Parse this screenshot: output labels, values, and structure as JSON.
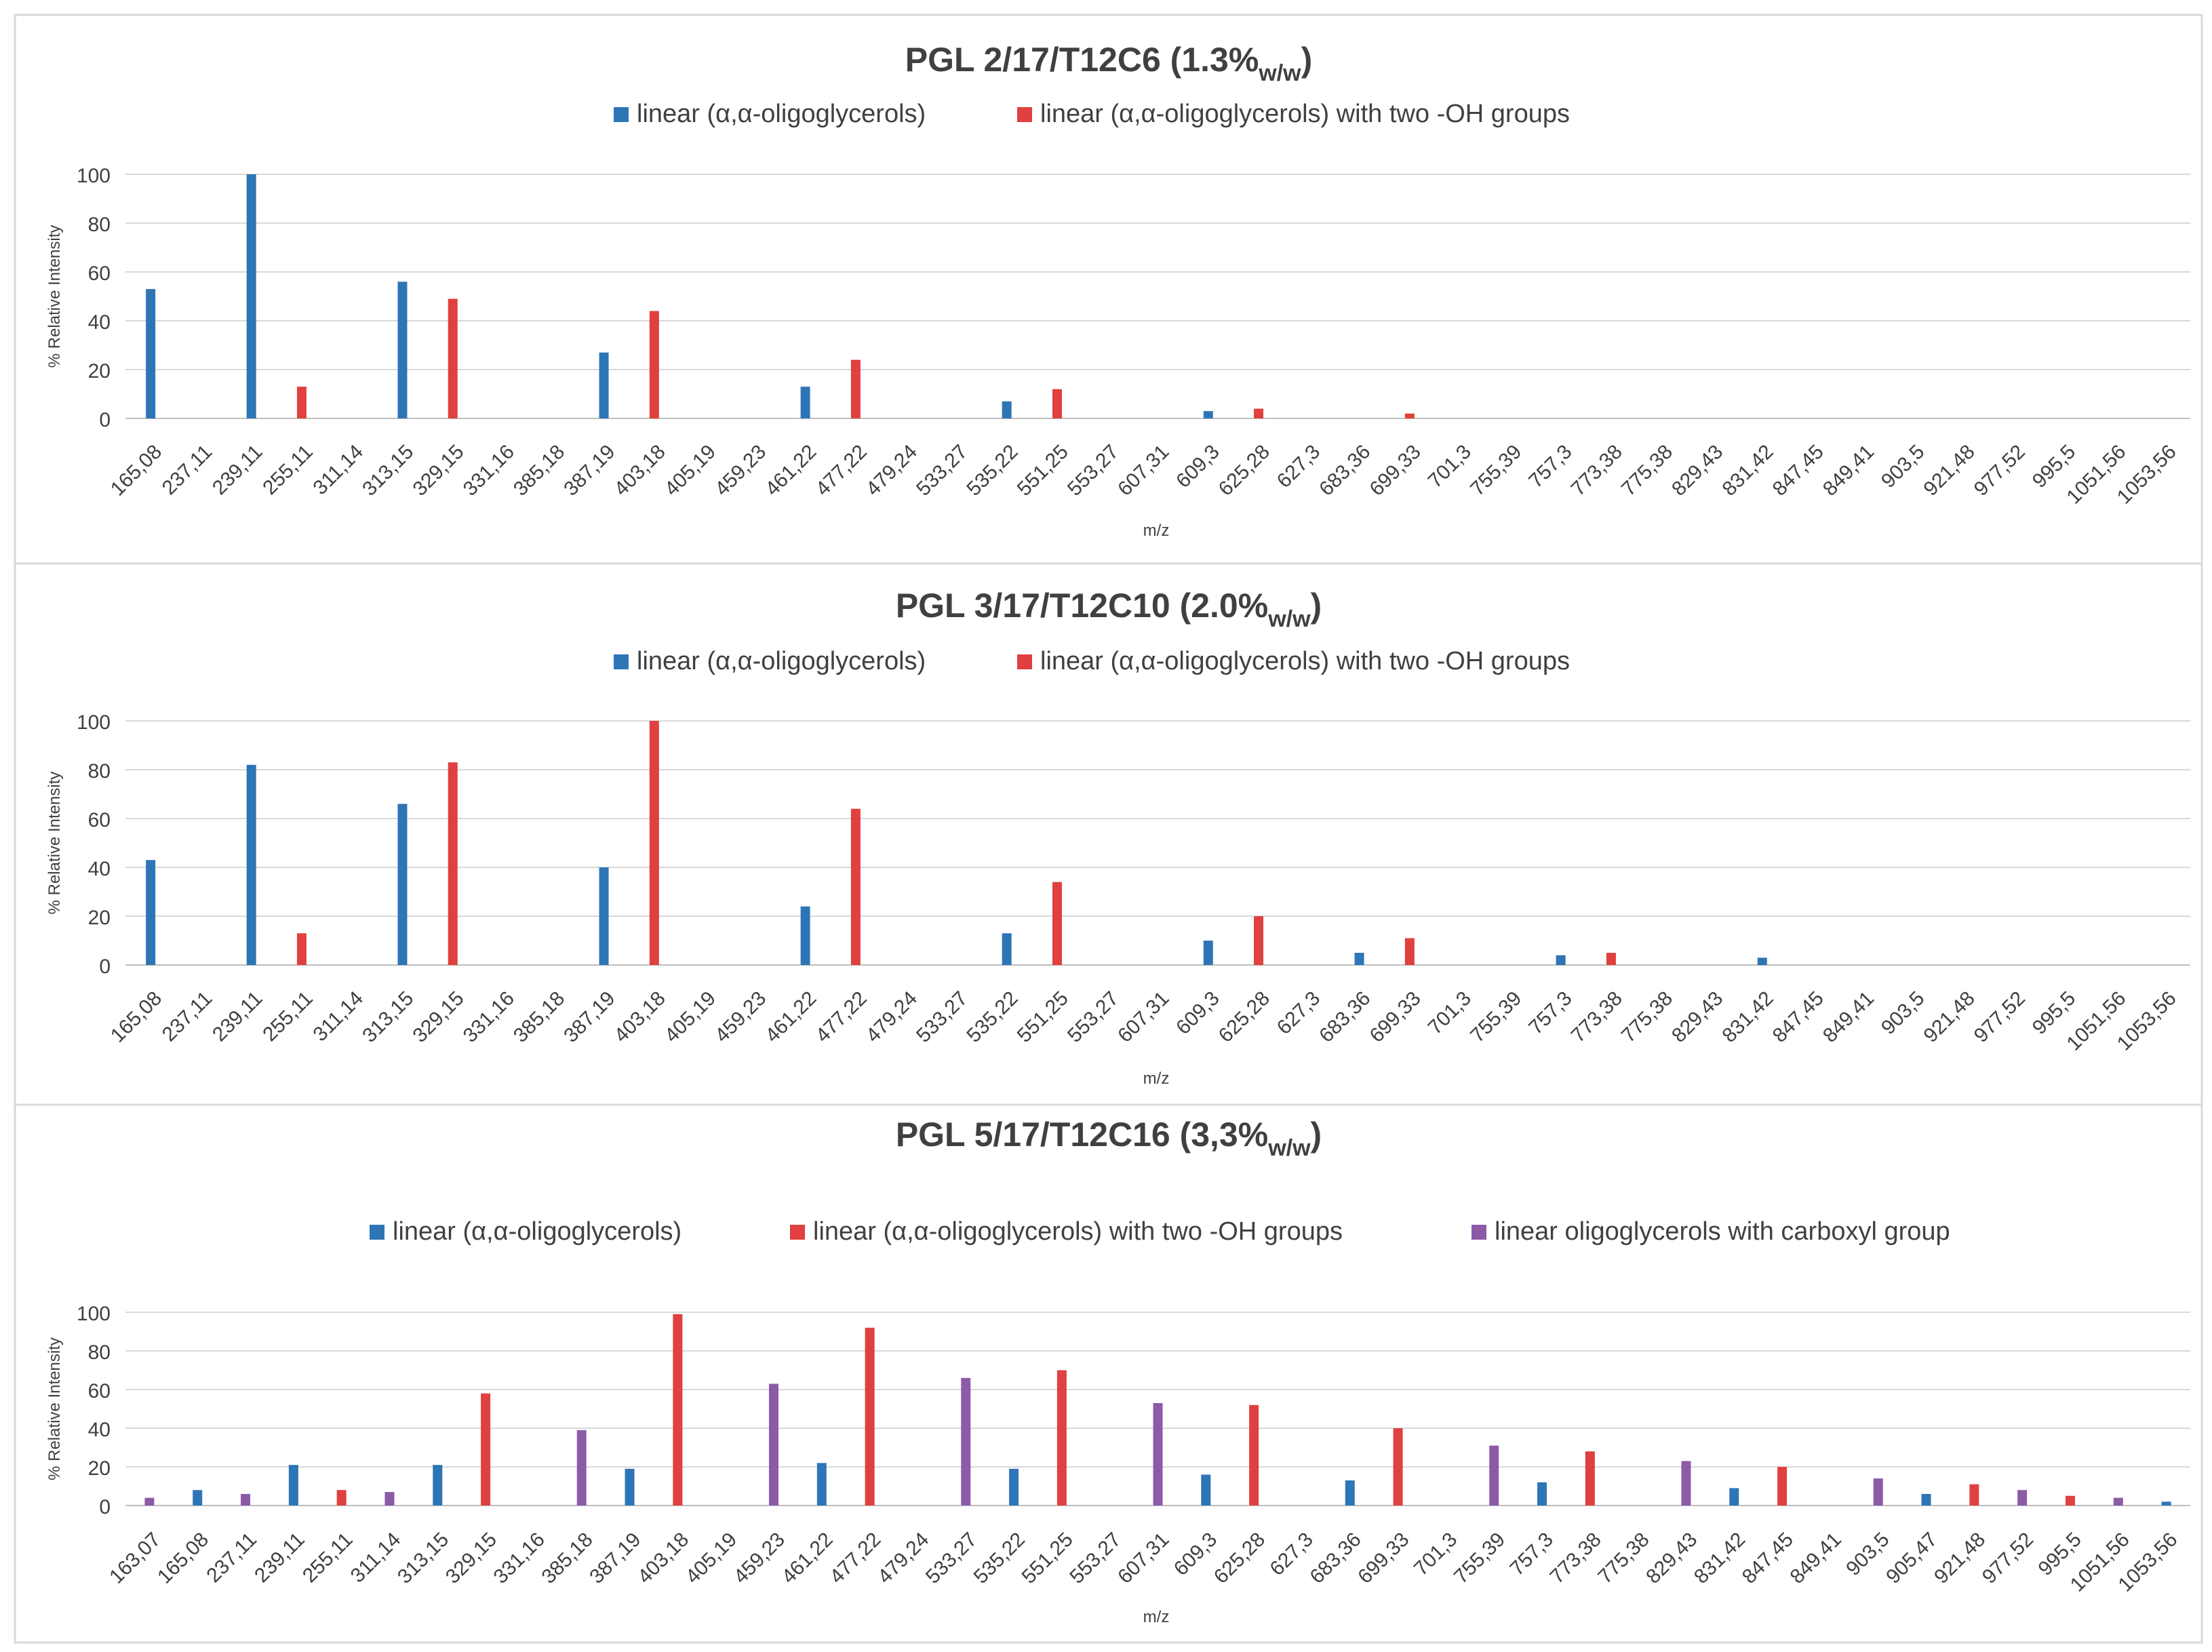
{
  "colors": {
    "linear": "#2E75B6",
    "linear_two_oh": "#E0403F",
    "carboxyl": "#8B5BA8",
    "grid": "#D9D9D9",
    "axis_text": "#404040",
    "title": "#404040"
  },
  "chart_data": [
    {
      "type": "bar",
      "title": "PGL 2/17/T12C6 (1.3%",
      "title_sub": "w/w",
      "title_end": ")",
      "xlabel": "m/z",
      "ylabel": "% Relative Intensity",
      "ylim": [
        0,
        100
      ],
      "yticks": [
        "0",
        "20",
        "40",
        "60",
        "80",
        "100"
      ],
      "legend_position": "top-center",
      "categories": [
        "165,08",
        "237,11",
        "239,11",
        "255,11",
        "311,14",
        "313,15",
        "329,15",
        "331,16",
        "385,18",
        "387,19",
        "403,18",
        "405,19",
        "459,23",
        "461,22",
        "477,22",
        "479,24",
        "533,27",
        "535,22",
        "551,25",
        "553,27",
        "607,31",
        "609,3",
        "625,28",
        "627,3",
        "683,36",
        "699,33",
        "701,3",
        "755,39",
        "757,3",
        "773,38",
        "775,38",
        "829,43",
        "831,42",
        "847,45",
        "849,41",
        "903,5",
        "921,48",
        "977,52",
        "995,5",
        "1051,56",
        "1053,56"
      ],
      "series": [
        {
          "name": "linear (α,α-oligoglycerols)",
          "color_key": "linear",
          "points": [
            {
              "category": "165,08",
              "value": 53
            },
            {
              "category": "239,11",
              "value": 100
            },
            {
              "category": "313,15",
              "value": 56
            },
            {
              "category": "387,19",
              "value": 27
            },
            {
              "category": "461,22",
              "value": 13
            },
            {
              "category": "535,22",
              "value": 7
            },
            {
              "category": "609,3",
              "value": 3
            }
          ]
        },
        {
          "name": "linear (α,α-oligoglycerols) with two -OH groups",
          "color_key": "linear_two_oh",
          "points": [
            {
              "category": "255,11",
              "value": 13
            },
            {
              "category": "329,15",
              "value": 49
            },
            {
              "category": "403,18",
              "value": 44
            },
            {
              "category": "477,22",
              "value": 24
            },
            {
              "category": "551,25",
              "value": 12
            },
            {
              "category": "625,28",
              "value": 4
            },
            {
              "category": "699,33",
              "value": 2
            }
          ]
        }
      ]
    },
    {
      "type": "bar",
      "title": "PGL 3/17/T12C10 (2.0%",
      "title_sub": "w/w",
      "title_end": ")",
      "xlabel": "m/z",
      "ylabel": "% Relative Intensity",
      "ylim": [
        0,
        100
      ],
      "yticks": [
        "0",
        "20",
        "40",
        "60",
        "80",
        "100"
      ],
      "legend_position": "top-center",
      "categories": [
        "165,08",
        "237,11",
        "239,11",
        "255,11",
        "311,14",
        "313,15",
        "329,15",
        "331,16",
        "385,18",
        "387,19",
        "403,18",
        "405,19",
        "459,23",
        "461,22",
        "477,22",
        "479,24",
        "533,27",
        "535,22",
        "551,25",
        "553,27",
        "607,31",
        "609,3",
        "625,28",
        "627,3",
        "683,36",
        "699,33",
        "701,3",
        "755,39",
        "757,3",
        "773,38",
        "775,38",
        "829,43",
        "831,42",
        "847,45",
        "849,41",
        "903,5",
        "921,48",
        "977,52",
        "995,5",
        "1051,56",
        "1053,56"
      ],
      "series": [
        {
          "name": "linear (α,α-oligoglycerols)",
          "color_key": "linear",
          "points": [
            {
              "category": "165,08",
              "value": 43
            },
            {
              "category": "239,11",
              "value": 82
            },
            {
              "category": "313,15",
              "value": 66
            },
            {
              "category": "387,19",
              "value": 40
            },
            {
              "category": "461,22",
              "value": 24
            },
            {
              "category": "535,22",
              "value": 13
            },
            {
              "category": "609,3",
              "value": 10
            },
            {
              "category": "683,36",
              "value": 5
            },
            {
              "category": "757,3",
              "value": 4
            },
            {
              "category": "831,42",
              "value": 3
            }
          ]
        },
        {
          "name": "linear (α,α-oligoglycerols) with two -OH groups",
          "color_key": "linear_two_oh",
          "points": [
            {
              "category": "255,11",
              "value": 13
            },
            {
              "category": "329,15",
              "value": 83
            },
            {
              "category": "403,18",
              "value": 100
            },
            {
              "category": "477,22",
              "value": 64
            },
            {
              "category": "551,25",
              "value": 34
            },
            {
              "category": "625,28",
              "value": 20
            },
            {
              "category": "699,33",
              "value": 11
            },
            {
              "category": "773,38",
              "value": 5
            }
          ]
        }
      ]
    },
    {
      "type": "bar",
      "title": "PGL 5/17/T12C16 (3,3%",
      "title_sub": "w/w",
      "title_end": ")",
      "xlabel": "m/z",
      "ylabel": "% Relative Intensity",
      "ylim": [
        0,
        100
      ],
      "yticks": [
        "0",
        "20",
        "40",
        "60",
        "80",
        "100"
      ],
      "legend_position": "top-center",
      "categories": [
        "163,07",
        "165,08",
        "237,11",
        "239,11",
        "255,11",
        "311,14",
        "313,15",
        "329,15",
        "331,16",
        "385,18",
        "387,19",
        "403,18",
        "405,19",
        "459,23",
        "461,22",
        "477,22",
        "479,24",
        "533,27",
        "535,22",
        "551,25",
        "553,27",
        "607,31",
        "609,3",
        "625,28",
        "627,3",
        "683,36",
        "699,33",
        "701,3",
        "755,39",
        "757,3",
        "773,38",
        "775,38",
        "829,43",
        "831,42",
        "847,45",
        "849,41",
        "903,5",
        "905,47",
        "921,48",
        "977,52",
        "995,5",
        "1051,56",
        "1053,56"
      ],
      "series": [
        {
          "name": "linear (α,α-oligoglycerols)",
          "color_key": "linear",
          "points": [
            {
              "category": "165,08",
              "value": 8
            },
            {
              "category": "239,11",
              "value": 21
            },
            {
              "category": "313,15",
              "value": 21
            },
            {
              "category": "387,19",
              "value": 19
            },
            {
              "category": "461,22",
              "value": 22
            },
            {
              "category": "535,22",
              "value": 19
            },
            {
              "category": "609,3",
              "value": 16
            },
            {
              "category": "683,36",
              "value": 13
            },
            {
              "category": "757,3",
              "value": 12
            },
            {
              "category": "831,42",
              "value": 9
            },
            {
              "category": "905,47",
              "value": 6
            },
            {
              "category": "1053,56",
              "value": 2
            }
          ]
        },
        {
          "name": "linear (α,α-oligoglycerols) with two -OH groups",
          "color_key": "linear_two_oh",
          "points": [
            {
              "category": "255,11",
              "value": 8
            },
            {
              "category": "329,15",
              "value": 58
            },
            {
              "category": "403,18",
              "value": 99
            },
            {
              "category": "477,22",
              "value": 92
            },
            {
              "category": "551,25",
              "value": 70
            },
            {
              "category": "625,28",
              "value": 52
            },
            {
              "category": "699,33",
              "value": 40
            },
            {
              "category": "773,38",
              "value": 28
            },
            {
              "category": "847,45",
              "value": 20
            },
            {
              "category": "921,48",
              "value": 11
            },
            {
              "category": "995,5",
              "value": 5
            }
          ]
        },
        {
          "name": "linear oligoglycerols with carboxyl group",
          "color_key": "carboxyl",
          "points": [
            {
              "category": "163,07",
              "value": 4
            },
            {
              "category": "237,11",
              "value": 6
            },
            {
              "category": "311,14",
              "value": 7
            },
            {
              "category": "385,18",
              "value": 39
            },
            {
              "category": "459,23",
              "value": 63
            },
            {
              "category": "533,27",
              "value": 66
            },
            {
              "category": "607,31",
              "value": 53
            },
            {
              "category": "755,39",
              "value": 31
            },
            {
              "category": "829,43",
              "value": 23
            },
            {
              "category": "903,5",
              "value": 14
            },
            {
              "category": "977,52",
              "value": 8
            },
            {
              "category": "1051,56",
              "value": 4
            }
          ]
        }
      ]
    }
  ]
}
